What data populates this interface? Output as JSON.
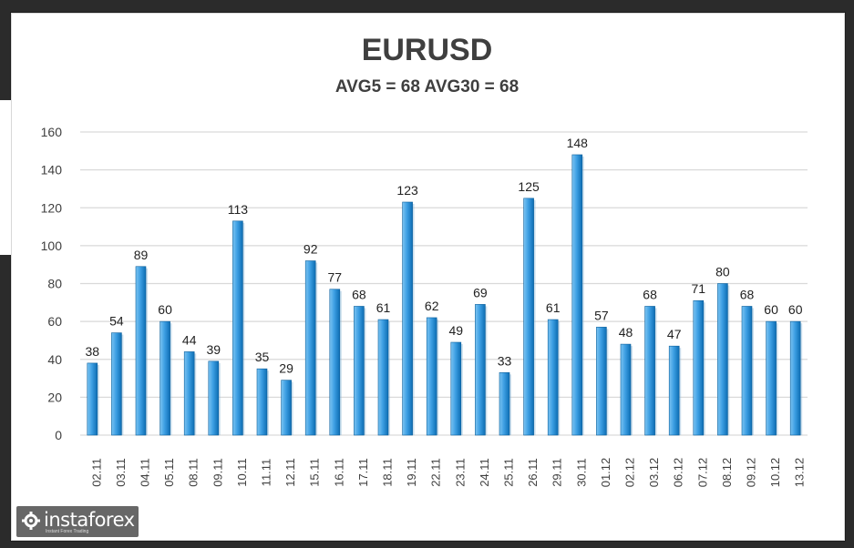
{
  "page": {
    "colors": {
      "background": "#2b2b2b",
      "panel": "#ffffff",
      "bar_light": "#4aa8e8",
      "bar_dark": "#0d6db3",
      "text": "#3f3f3f",
      "grid": "#d9d9d9"
    }
  },
  "logo": {
    "name": "instaforex",
    "tagline": "Instant Forex Trading",
    "icon": "instaforex-gear-icon"
  },
  "chart_data": {
    "type": "bar",
    "title": "EURUSD",
    "subtitle": "AVG5 = 68 AVG30 = 68",
    "xlabel": "",
    "ylabel": "",
    "ylim": [
      0,
      160
    ],
    "yticks": [
      0,
      20,
      40,
      60,
      80,
      100,
      120,
      140,
      160
    ],
    "grid": true,
    "legend": "none",
    "data_labels": true,
    "categories": [
      "02.11",
      "03.11",
      "04.11",
      "05.11",
      "08.11",
      "09.11",
      "10.11",
      "11.11",
      "12.11",
      "15.11",
      "16.11",
      "17.11",
      "18.11",
      "19.11",
      "22.11",
      "23.11",
      "24.11",
      "25.11",
      "26.11",
      "29.11",
      "30.11",
      "01.12",
      "02.12",
      "03.12",
      "06.12",
      "07.12",
      "08.12",
      "09.12",
      "10.12",
      "13.12"
    ],
    "values": [
      38,
      54,
      89,
      60,
      44,
      39,
      113,
      35,
      29,
      92,
      77,
      68,
      61,
      123,
      62,
      49,
      69,
      33,
      125,
      61,
      148,
      57,
      48,
      68,
      47,
      71,
      80,
      68,
      60,
      60
    ]
  }
}
